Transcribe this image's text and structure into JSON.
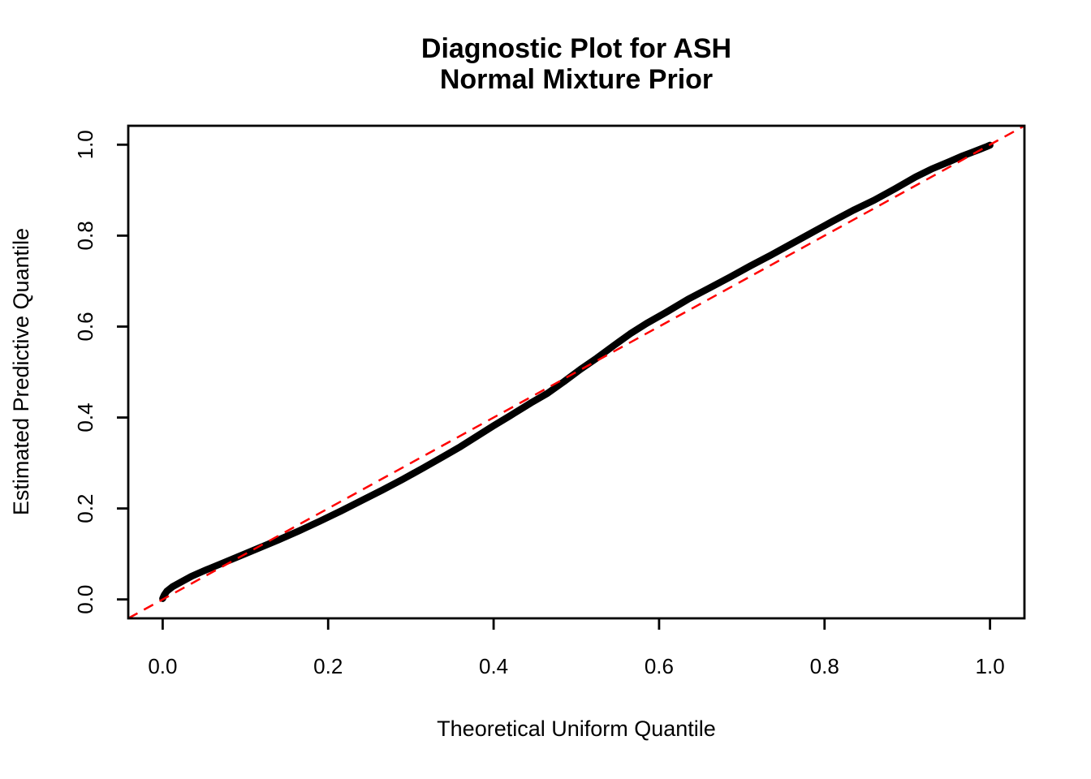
{
  "title": {
    "line1": "Diagnostic Plot for ASH",
    "line2": "Normal Mixture Prior"
  },
  "axes": {
    "x_label": "Theoretical Uniform Quantile",
    "y_label": "Estimated Predictive Quantile"
  },
  "chart_data": {
    "type": "line",
    "title": "Diagnostic Plot for ASH\nNormal Mixture Prior",
    "title_lines": [
      "Diagnostic Plot for ASH",
      "Normal Mixture Prior"
    ],
    "xlabel": "Theoretical Uniform Quantile",
    "ylabel": "Estimated Predictive Quantile",
    "xlim": [
      -0.0416,
      1.0416
    ],
    "ylim": [
      -0.0416,
      1.0416
    ],
    "grid": false,
    "legend": "none",
    "x_ticks": [
      0.0,
      0.2,
      0.4,
      0.6,
      0.8,
      1.0
    ],
    "y_ticks": [
      0.0,
      0.2,
      0.4,
      0.6,
      0.8,
      1.0
    ],
    "x_tick_labels": [
      "0.0",
      "0.2",
      "0.4",
      "0.6",
      "0.8",
      "1.0"
    ],
    "y_tick_labels": [
      "0.0",
      "0.2",
      "0.4",
      "0.6",
      "0.8",
      "1.0"
    ],
    "colors": {
      "curve": "#000000",
      "reference": "#FF0000",
      "axis": "#000000",
      "background": "#FFFFFF"
    },
    "series": [
      {
        "name": "estimated-predictive-quantiles",
        "kind": "thick-point-curve",
        "color": "#000000",
        "stroke_width": 8.5,
        "points": [
          [
            0.0,
            0.002
          ],
          [
            0.002,
            0.01
          ],
          [
            0.005,
            0.018
          ],
          [
            0.012,
            0.028
          ],
          [
            0.022,
            0.038
          ],
          [
            0.035,
            0.051
          ],
          [
            0.05,
            0.063
          ],
          [
            0.07,
            0.078
          ],
          [
            0.09,
            0.093
          ],
          [
            0.115,
            0.112
          ],
          [
            0.14,
            0.131
          ],
          [
            0.165,
            0.151
          ],
          [
            0.19,
            0.172
          ],
          [
            0.215,
            0.194
          ],
          [
            0.24,
            0.217
          ],
          [
            0.265,
            0.24
          ],
          [
            0.29,
            0.264
          ],
          [
            0.315,
            0.289
          ],
          [
            0.34,
            0.315
          ],
          [
            0.36,
            0.336
          ],
          [
            0.38,
            0.359
          ],
          [
            0.4,
            0.382
          ],
          [
            0.42,
            0.404
          ],
          [
            0.445,
            0.432
          ],
          [
            0.465,
            0.453
          ],
          [
            0.485,
            0.479
          ],
          [
            0.505,
            0.506
          ],
          [
            0.525,
            0.531
          ],
          [
            0.545,
            0.558
          ],
          [
            0.565,
            0.584
          ],
          [
            0.585,
            0.607
          ],
          [
            0.61,
            0.633
          ],
          [
            0.635,
            0.66
          ],
          [
            0.66,
            0.684
          ],
          [
            0.685,
            0.708
          ],
          [
            0.71,
            0.733
          ],
          [
            0.735,
            0.757
          ],
          [
            0.76,
            0.782
          ],
          [
            0.785,
            0.807
          ],
          [
            0.81,
            0.832
          ],
          [
            0.835,
            0.856
          ],
          [
            0.86,
            0.878
          ],
          [
            0.885,
            0.903
          ],
          [
            0.91,
            0.929
          ],
          [
            0.93,
            0.947
          ],
          [
            0.95,
            0.962
          ],
          [
            0.965,
            0.974
          ],
          [
            0.978,
            0.983
          ],
          [
            0.988,
            0.99
          ],
          [
            0.995,
            0.995
          ],
          [
            1.0,
            0.999
          ]
        ]
      },
      {
        "name": "reference-diagonal",
        "kind": "dashed-line",
        "color": "#FF0000",
        "stroke_width": 2.5,
        "dash": [
          13,
          9
        ],
        "from": [
          -0.0416,
          -0.0416
        ],
        "to": [
          1.0416,
          1.0416
        ]
      }
    ]
  }
}
